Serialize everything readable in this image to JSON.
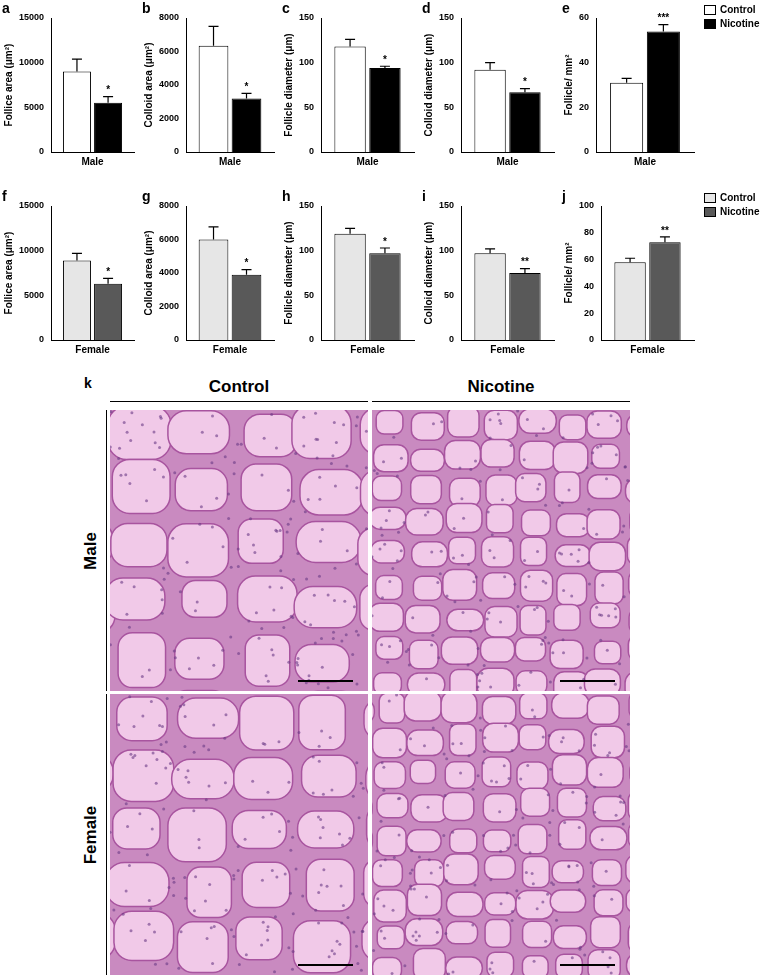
{
  "chart_data": [
    {
      "type": "bar",
      "title": "a",
      "y_label": "Follice area (μm²)",
      "categories": [
        "Male"
      ],
      "series": [
        {
          "name": "Control",
          "color": "#ffffff",
          "values": [
            9000
          ],
          "errors": [
            1400
          ]
        },
        {
          "name": "Nicotine",
          "color": "#000000",
          "values": [
            5500
          ],
          "errors": [
            700
          ],
          "annotations": [
            "*"
          ]
        }
      ],
      "ylim": [
        0,
        15000
      ],
      "yticks": [
        0,
        5000,
        10000,
        15000
      ],
      "grid": false
    },
    {
      "type": "bar",
      "title": "b",
      "y_label": "Colloid area (μm²)",
      "categories": [
        "Male"
      ],
      "series": [
        {
          "name": "Control",
          "color": "#ffffff",
          "values": [
            6350
          ],
          "errors": [
            1150
          ]
        },
        {
          "name": "Nicotine",
          "color": "#000000",
          "values": [
            3200
          ],
          "errors": [
            300
          ],
          "annotations": [
            "*"
          ]
        }
      ],
      "ylim": [
        0,
        8000
      ],
      "yticks": [
        0,
        2000,
        4000,
        6000,
        8000
      ],
      "grid": false
    },
    {
      "type": "bar",
      "title": "c",
      "y_label": "Follicle diameter (μm)",
      "categories": [
        "Male"
      ],
      "series": [
        {
          "name": "Control",
          "color": "#ffffff",
          "values": [
            118
          ],
          "errors": [
            8
          ]
        },
        {
          "name": "Nicotine",
          "color": "#000000",
          "values": [
            94
          ],
          "errors": [
            2
          ],
          "annotations": [
            "*"
          ]
        }
      ],
      "ylim": [
        0,
        150
      ],
      "yticks": [
        0,
        50,
        100,
        150
      ],
      "grid": false
    },
    {
      "type": "bar",
      "title": "d",
      "y_label": "Colloid diameter (μm)",
      "categories": [
        "Male"
      ],
      "series": [
        {
          "name": "Control",
          "color": "#ffffff",
          "values": [
            92
          ],
          "errors": [
            8
          ]
        },
        {
          "name": "Nicotine",
          "color": "#000000",
          "values": [
            67
          ],
          "errors": [
            4
          ],
          "annotations": [
            "*"
          ]
        }
      ],
      "ylim": [
        0,
        150
      ],
      "yticks": [
        0,
        50,
        100,
        150
      ],
      "grid": false
    },
    {
      "type": "bar",
      "title": "e",
      "y_label": "Follicle/ mm²",
      "categories": [
        "Male"
      ],
      "series": [
        {
          "name": "Control",
          "color": "#ffffff",
          "values": [
            31
          ],
          "errors": [
            2
          ]
        },
        {
          "name": "Nicotine",
          "color": "#000000",
          "values": [
            54
          ],
          "errors": [
            3
          ],
          "annotations": [
            "***"
          ]
        }
      ],
      "ylim": [
        0,
        60
      ],
      "yticks": [
        0,
        20,
        40,
        60
      ],
      "grid": false,
      "legend": "right"
    },
    {
      "type": "bar",
      "title": "f",
      "y_label": "Follice area (μm²)",
      "categories": [
        "Female"
      ],
      "series": [
        {
          "name": "Control",
          "color": "#e6e6e6",
          "values": [
            8900
          ],
          "errors": [
            800
          ]
        },
        {
          "name": "Nicotine",
          "color": "#595959",
          "values": [
            6300
          ],
          "errors": [
            600
          ],
          "annotations": [
            "*"
          ]
        }
      ],
      "ylim": [
        0,
        15000
      ],
      "yticks": [
        0,
        5000,
        10000,
        15000
      ],
      "grid": false
    },
    {
      "type": "bar",
      "title": "g",
      "y_label": "Colloid area (μm²)",
      "categories": [
        "Female"
      ],
      "series": [
        {
          "name": "Control",
          "color": "#e6e6e6",
          "values": [
            6000
          ],
          "errors": [
            750
          ]
        },
        {
          "name": "Nicotine",
          "color": "#595959",
          "values": [
            3900
          ],
          "errors": [
            300
          ],
          "annotations": [
            "*"
          ]
        }
      ],
      "ylim": [
        0,
        8000
      ],
      "yticks": [
        0,
        2000,
        4000,
        6000,
        8000
      ],
      "grid": false
    },
    {
      "type": "bar",
      "title": "h",
      "y_label": "Follicle diameter (μm)",
      "categories": [
        "Female"
      ],
      "series": [
        {
          "name": "Control",
          "color": "#e6e6e6",
          "values": [
            119
          ],
          "errors": [
            6
          ]
        },
        {
          "name": "Nicotine",
          "color": "#595959",
          "values": [
            97
          ],
          "errors": [
            6
          ],
          "annotations": [
            "*"
          ]
        }
      ],
      "ylim": [
        0,
        150
      ],
      "yticks": [
        0,
        50,
        100,
        150
      ],
      "grid": false
    },
    {
      "type": "bar",
      "title": "i",
      "y_label": "Colloid diameter (μm)",
      "categories": [
        "Female"
      ],
      "series": [
        {
          "name": "Control",
          "color": "#e6e6e6",
          "values": [
            97
          ],
          "errors": [
            5
          ]
        },
        {
          "name": "Nicotine",
          "color": "#595959",
          "values": [
            75
          ],
          "errors": [
            5
          ],
          "annotations": [
            "**"
          ]
        }
      ],
      "ylim": [
        0,
        150
      ],
      "yticks": [
        0,
        50,
        100,
        150
      ],
      "grid": false
    },
    {
      "type": "bar",
      "title": "j",
      "y_label": "Follicle/ mm²",
      "categories": [
        "Female"
      ],
      "series": [
        {
          "name": "Control",
          "color": "#e6e6e6",
          "values": [
            58
          ],
          "errors": [
            3
          ]
        },
        {
          "name": "Nicotine",
          "color": "#595959",
          "values": [
            73
          ],
          "errors": [
            4
          ],
          "annotations": [
            "**"
          ]
        }
      ],
      "ylim": [
        0,
        100
      ],
      "yticks": [
        0,
        20,
        40,
        60,
        80,
        100
      ],
      "grid": false,
      "legend": "right"
    }
  ],
  "panel_k": {
    "label": "k",
    "columns": [
      "Control",
      "Nicotine"
    ],
    "rows": [
      "Male",
      "Female"
    ]
  }
}
